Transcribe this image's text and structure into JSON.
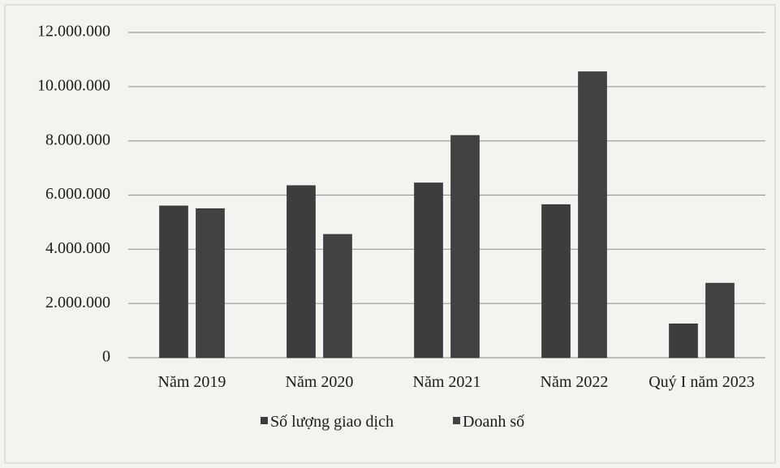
{
  "chart_data": {
    "type": "bar",
    "categories": [
      "Năm 2019",
      "Năm 2020",
      "Năm 2021",
      "Năm 2022",
      "Quý I năm 2023"
    ],
    "series": [
      {
        "name": "Số lượng giao dịch",
        "values": [
          5600000,
          6350000,
          6450000,
          5650000,
          1250000
        ],
        "color": "#3d3d3d"
      },
      {
        "name": "Doanh số",
        "values": [
          5500000,
          4550000,
          8200000,
          10550000,
          2750000
        ],
        "color": "#424242"
      }
    ],
    "ylim": [
      0,
      12000000
    ],
    "yticks": [
      0,
      2000000,
      4000000,
      6000000,
      8000000,
      10000000,
      12000000
    ],
    "ytick_labels": [
      "0",
      "2.000.000",
      "4.000.000",
      "6.000.000",
      "8.000.000",
      "10.000.000",
      "12.000.000"
    ],
    "grid": true,
    "legend_position": "bottom",
    "title": "",
    "xlabel": "",
    "ylabel": ""
  }
}
